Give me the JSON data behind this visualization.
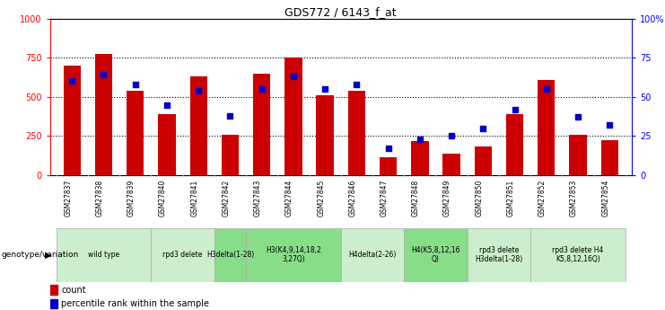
{
  "title": "GDS772 / 6143_f_at",
  "samples": [
    "GSM27837",
    "GSM27838",
    "GSM27839",
    "GSM27840",
    "GSM27841",
    "GSM27842",
    "GSM27843",
    "GSM27844",
    "GSM27845",
    "GSM27846",
    "GSM27847",
    "GSM27848",
    "GSM27849",
    "GSM27850",
    "GSM27851",
    "GSM27852",
    "GSM27853",
    "GSM27854"
  ],
  "counts": [
    700,
    775,
    540,
    390,
    630,
    260,
    650,
    750,
    510,
    540,
    115,
    215,
    140,
    185,
    390,
    610,
    255,
    225
  ],
  "percentiles": [
    60,
    64,
    58,
    45,
    54,
    38,
    55,
    63,
    55,
    58,
    17,
    23,
    25,
    30,
    42,
    55,
    37,
    32
  ],
  "groups": [
    {
      "label": "wild type",
      "start": 0,
      "end": 3,
      "color": "#cceecc"
    },
    {
      "label": "rpd3 delete",
      "start": 3,
      "end": 5,
      "color": "#cceecc"
    },
    {
      "label": "H3delta(1-28)",
      "start": 5,
      "end": 6,
      "color": "#88dd88"
    },
    {
      "label": "H3(K4,9,14,18,2\n3,27Q)",
      "start": 6,
      "end": 9,
      "color": "#88dd88"
    },
    {
      "label": "H4delta(2-26)",
      "start": 9,
      "end": 11,
      "color": "#cceecc"
    },
    {
      "label": "H4(K5,8,12,16\nQ)",
      "start": 11,
      "end": 13,
      "color": "#88dd88"
    },
    {
      "label": "rpd3 delete\nH3delta(1-28)",
      "start": 13,
      "end": 15,
      "color": "#cceecc"
    },
    {
      "label": "rpd3 delete H4\nK5,8,12,16Q)",
      "start": 15,
      "end": 18,
      "color": "#cceecc"
    }
  ],
  "bar_color": "#cc0000",
  "dot_color": "#0000cc",
  "ylim_left": [
    0,
    1000
  ],
  "ylim_right": [
    0,
    100
  ],
  "yticks_left": [
    0,
    250,
    500,
    750,
    1000
  ],
  "yticks_right": [
    0,
    25,
    50,
    75,
    100
  ],
  "ytick_labels_left": [
    "0",
    "250",
    "500",
    "750",
    "1000"
  ],
  "ytick_labels_right": [
    "0",
    "25",
    "50",
    "75",
    "100%"
  ],
  "legend_count_label": "count",
  "legend_percentile_label": "percentile rank within the sample",
  "genotype_label": "genotype/variation",
  "bg_color": "#ffffff",
  "sample_label_bg": "#cccccc",
  "grid_dotted_color": "#000000"
}
